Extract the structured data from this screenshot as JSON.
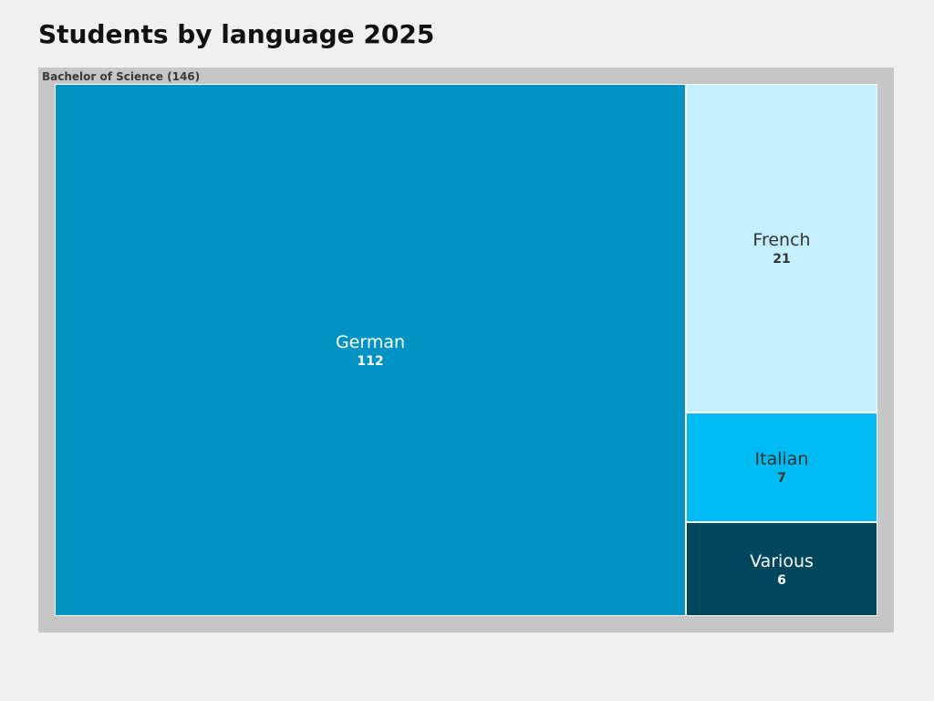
{
  "title": "Students by language 2025",
  "chart_data": {
    "type": "treemap",
    "title": "Students by language 2025",
    "group": {
      "label": "Bachelor of Science (146)",
      "name": "Bachelor of Science",
      "total": 146
    },
    "items": [
      {
        "name": "German",
        "value": 112,
        "value_label": "112",
        "color": "#0093c4",
        "text_color": "#ffffff"
      },
      {
        "name": "French",
        "value": 21,
        "value_label": "21",
        "color": "#c4efff",
        "text_color": "#333333"
      },
      {
        "name": "Italian",
        "value": 7,
        "value_label": "7",
        "color": "#00baf2",
        "text_color": "#333333"
      },
      {
        "name": "Various",
        "value": 6,
        "value_label": "6",
        "color": "#00465d",
        "text_color": "#ffffff"
      }
    ]
  }
}
